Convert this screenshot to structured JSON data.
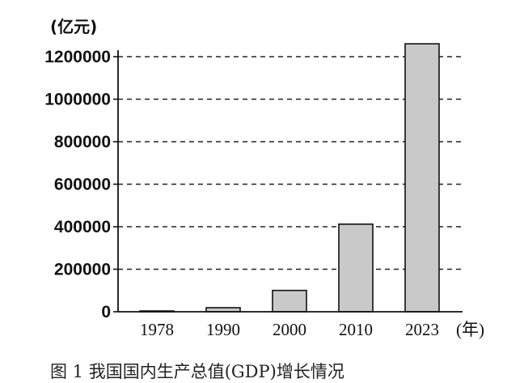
{
  "chart_data": {
    "type": "bar",
    "categories": [
      "1978",
      "1990",
      "2000",
      "2010",
      "2023"
    ],
    "values": [
      3679,
      18923,
      100280,
      412119,
      1260582
    ],
    "ylabel": "(亿元)",
    "xlabel": "(年)",
    "ylim": [
      0,
      1200000
    ],
    "yticks": [
      0,
      200000,
      400000,
      600000,
      800000,
      1000000,
      1200000
    ],
    "ytick_labels": [
      "0",
      "200000",
      "400000",
      "600000",
      "800000",
      "1000000",
      "1200000"
    ],
    "grid": "horizontal dashed",
    "bar_color": "#c9c9c9",
    "caption": "图 1   我国国内生产总值(GDP)增长情况"
  }
}
